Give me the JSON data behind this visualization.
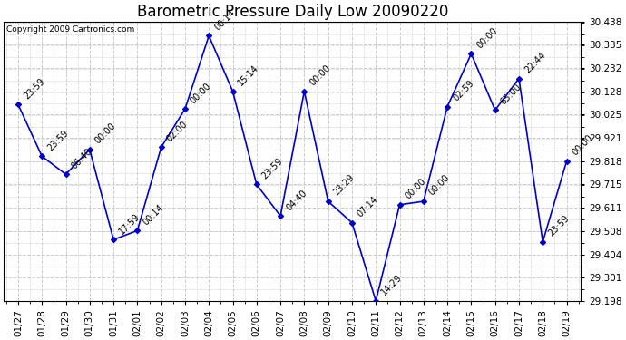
{
  "title": "Barometric Pressure Daily Low 20090220",
  "copyright": "Copyright 2009 Cartronics.com",
  "dates": [
    "01/27",
    "01/28",
    "01/29",
    "01/30",
    "01/31",
    "02/01",
    "02/02",
    "02/03",
    "02/04",
    "02/05",
    "02/06",
    "02/07",
    "02/08",
    "02/09",
    "02/10",
    "02/11",
    "02/12",
    "02/13",
    "02/14",
    "02/15",
    "02/16",
    "02/17",
    "02/18",
    "02/19"
  ],
  "values": [
    30.07,
    29.84,
    29.76,
    29.87,
    29.47,
    29.51,
    29.88,
    30.05,
    30.375,
    30.128,
    29.715,
    29.575,
    30.128,
    29.64,
    29.545,
    29.198,
    29.625,
    29.64,
    30.06,
    30.295,
    30.045,
    30.185,
    29.46,
    29.818
  ],
  "annotations": [
    "23:59",
    "23:59",
    "06:40",
    "00:00",
    "17:59",
    "00:14",
    "02:00",
    "00:00",
    "00:14",
    "15:14",
    "23:59",
    "04:40",
    "00:00",
    "23:29",
    "07:14",
    "14:29",
    "00:00",
    "00:00",
    "02:59",
    "00:00",
    "65:00",
    "22:44",
    "23:59",
    "00:00"
  ],
  "ylim": [
    29.198,
    30.438
  ],
  "yticks": [
    29.198,
    29.301,
    29.404,
    29.508,
    29.611,
    29.715,
    29.818,
    29.921,
    30.025,
    30.128,
    30.232,
    30.335,
    30.438
  ],
  "line_color": "#0000cc",
  "marker_color": "#0000cc",
  "bg_color": "#ffffff",
  "grid_color": "#cccccc",
  "font_color": "#000000",
  "title_fontsize": 12,
  "tick_fontsize": 7.5,
  "annot_fontsize": 7,
  "figwidth": 6.9,
  "figheight": 3.75,
  "dpi": 100
}
